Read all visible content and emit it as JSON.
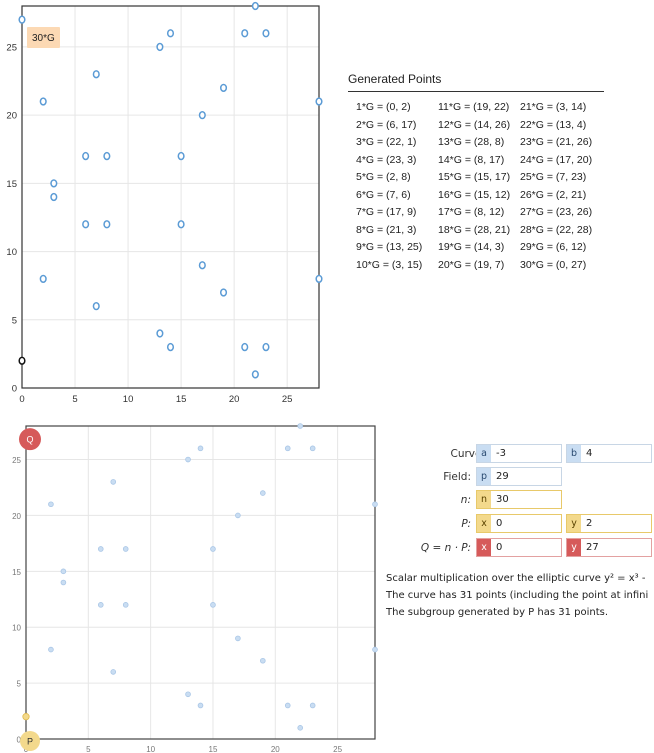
{
  "chart_data": [
    {
      "type": "scatter",
      "xlim": [
        0,
        28
      ],
      "ylim": [
        0,
        28
      ],
      "x_ticks": [
        0,
        5,
        10,
        15,
        20,
        25
      ],
      "y_ticks": [
        0,
        5,
        10,
        15,
        20,
        25
      ],
      "grid": true,
      "annotation": "30*G",
      "points": [
        [
          0,
          2
        ],
        [
          6,
          17
        ],
        [
          22,
          1
        ],
        [
          23,
          3
        ],
        [
          2,
          8
        ],
        [
          7,
          6
        ],
        [
          17,
          9
        ],
        [
          21,
          3
        ],
        [
          13,
          25
        ],
        [
          3,
          15
        ],
        [
          19,
          22
        ],
        [
          14,
          26
        ],
        [
          28,
          8
        ],
        [
          8,
          17
        ],
        [
          15,
          17
        ],
        [
          15,
          12
        ],
        [
          8,
          12
        ],
        [
          28,
          21
        ],
        [
          14,
          3
        ],
        [
          19,
          7
        ],
        [
          3,
          14
        ],
        [
          13,
          4
        ],
        [
          21,
          26
        ],
        [
          17,
          20
        ],
        [
          7,
          23
        ],
        [
          2,
          21
        ],
        [
          23,
          26
        ],
        [
          22,
          28
        ],
        [
          6,
          12
        ],
        [
          0,
          27
        ]
      ]
    },
    {
      "type": "scatter",
      "xlim": [
        0,
        28
      ],
      "ylim": [
        0,
        28
      ],
      "x_ticks": [
        0,
        5,
        10,
        15,
        20,
        25
      ],
      "y_ticks": [
        0,
        5,
        10,
        15,
        20,
        25
      ],
      "grid": true,
      "highlight_P": {
        "label": "P",
        "x": 0,
        "y": 2
      },
      "highlight_Q": {
        "label": "Q",
        "x": 0,
        "y": 27
      },
      "points": [
        [
          0,
          2
        ],
        [
          6,
          17
        ],
        [
          22,
          1
        ],
        [
          23,
          3
        ],
        [
          2,
          8
        ],
        [
          7,
          6
        ],
        [
          17,
          9
        ],
        [
          21,
          3
        ],
        [
          13,
          25
        ],
        [
          3,
          15
        ],
        [
          19,
          22
        ],
        [
          14,
          26
        ],
        [
          28,
          8
        ],
        [
          8,
          17
        ],
        [
          15,
          17
        ],
        [
          15,
          12
        ],
        [
          8,
          12
        ],
        [
          28,
          21
        ],
        [
          14,
          3
        ],
        [
          19,
          7
        ],
        [
          3,
          14
        ],
        [
          13,
          4
        ],
        [
          21,
          26
        ],
        [
          17,
          20
        ],
        [
          7,
          23
        ],
        [
          2,
          21
        ],
        [
          23,
          26
        ],
        [
          22,
          28
        ],
        [
          6,
          12
        ],
        [
          0,
          27
        ]
      ]
    }
  ],
  "generated": {
    "title": "Generated Points",
    "items": [
      "1*G = (0, 2)",
      "11*G = (19, 22)",
      "21*G = (3, 14)",
      "2*G = (6, 17)",
      "12*G = (14, 26)",
      "22*G = (13, 4)",
      "3*G = (22, 1)",
      "13*G = (28, 8)",
      "23*G = (21, 26)",
      "4*G = (23, 3)",
      "14*G = (8, 17)",
      "24*G = (17, 20)",
      "5*G = (2, 8)",
      "15*G = (15, 17)",
      "25*G = (7, 23)",
      "6*G = (7, 6)",
      "16*G = (15, 12)",
      "26*G = (2, 21)",
      "7*G = (17, 9)",
      "17*G = (8, 12)",
      "27*G = (23, 26)",
      "8*G = (21, 3)",
      "18*G = (28, 21)",
      "28*G = (22, 28)",
      "9*G = (13, 25)",
      "19*G = (14, 3)",
      "29*G = (6, 12)",
      "10*G = (3, 15)",
      "20*G = (19, 7)",
      "30*G = (0, 27)"
    ]
  },
  "controls": {
    "curve_label": "Curve:",
    "a_tag": "a",
    "a_value": "-3",
    "b_tag": "b",
    "b_value": "4",
    "field_label": "Field:",
    "p_tag": "p",
    "p_value": "29",
    "n_label": "n:",
    "n_tag": "n",
    "n_value": "30",
    "P_label": "P:",
    "Px_tag": "x",
    "Px_value": "0",
    "Py_tag": "y",
    "Py_value": "2",
    "Q_label": "Q = n · P:",
    "Qx_tag": "x",
    "Qx_value": "0",
    "Qy_tag": "y",
    "Qy_value": "27"
  },
  "description": {
    "line1": "Scalar multiplication over the elliptic curve y² = x³ -",
    "line2": "The curve has 31 points (including the point at infini",
    "line3": "The subgroup generated by P has 31 points."
  },
  "colors": {
    "point": "#5b9bd5",
    "annotation_bg": "#fcd9b4",
    "grid": "#e6e6e6",
    "P_fill": "#f3d98c",
    "Q_fill": "#d65a5a"
  }
}
